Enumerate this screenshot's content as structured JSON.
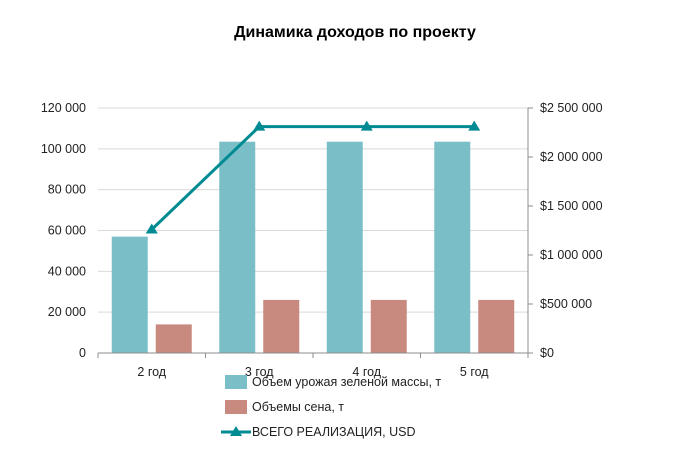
{
  "chart_data": {
    "type": "bar",
    "title": "Динамика доходов по проекту",
    "categories": [
      "2 год",
      "3 год",
      "4 год",
      "5 год"
    ],
    "series": [
      {
        "name": "Объем урожая зеленой массы, т",
        "kind": "bar",
        "axis": "left",
        "color": "#7ABFC7",
        "values": [
          57000,
          103500,
          103500,
          103500
        ]
      },
      {
        "name": "Объемы сена, т",
        "kind": "bar",
        "axis": "left",
        "color": "#C8897F",
        "values": [
          14000,
          26000,
          26000,
          26000
        ]
      },
      {
        "name": "ВСЕГО РЕАЛИЗАЦИЯ, USD",
        "kind": "line",
        "axis": "right",
        "color": "#008B93",
        "marker": "triangle",
        "values": [
          1260000,
          2310000,
          2310000,
          2310000
        ]
      }
    ],
    "y_left": {
      "range": [
        0,
        120000
      ],
      "ticks": [
        0,
        20000,
        40000,
        60000,
        80000,
        100000,
        120000
      ],
      "tick_labels": [
        "0",
        "20 000",
        "40 000",
        "60 000",
        "80 000",
        "100 000",
        "120 000"
      ]
    },
    "y_right": {
      "range": [
        0,
        2500000
      ],
      "ticks": [
        0,
        500000,
        1000000,
        1500000,
        2000000,
        2500000
      ],
      "tick_labels": [
        "$0",
        "$500 000",
        "$1 000 000",
        "$1 500 000",
        "$2 000 000",
        "$2 500 000"
      ]
    },
    "grid": true,
    "legend_position": "bottom"
  }
}
